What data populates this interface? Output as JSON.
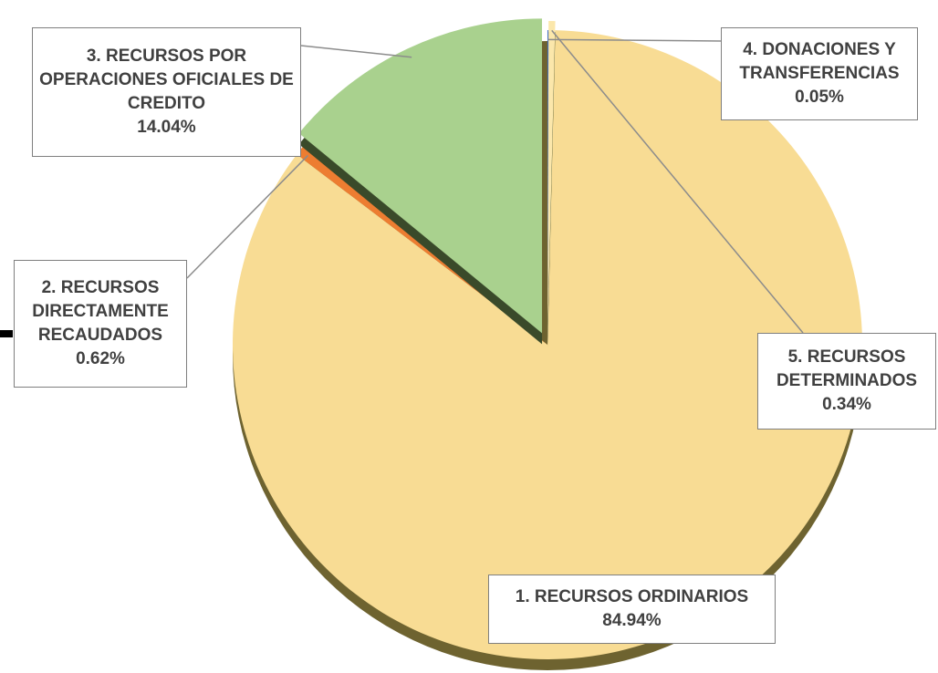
{
  "chart_data": {
    "type": "pie",
    "categories": [
      "1. RECURSOS ORDINARIOS",
      "2. RECURSOS DIRECTAMENTE RECAUDADOS",
      "3. RECURSOS POR OPERACIONES OFICIALES DE CREDITO",
      "4. DONACIONES Y TRANSFERENCIAS",
      "5. RECURSOS DETERMINADOS"
    ],
    "values": [
      84.94,
      0.62,
      14.04,
      0.05,
      0.34
    ],
    "value_labels": [
      "84.94%",
      "0.62%",
      "14.04%",
      "0.05%",
      "0.34%"
    ],
    "colors": [
      "#f8dc94",
      "#ed7d31",
      "#a9d18e",
      "#4472c4",
      "#fbe7ab"
    ]
  }
}
